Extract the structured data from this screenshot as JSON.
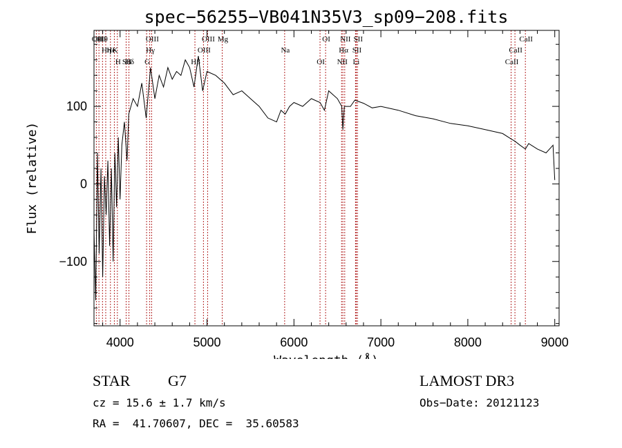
{
  "chart_data": {
    "type": "line",
    "title": "spec−56255−VB041N35V3_sp09−208.fits",
    "xlabel": "Wavelength (Å)",
    "ylabel": "Flux (relative)",
    "xlim": [
      3700,
      9050
    ],
    "ylim": [
      -183,
      198
    ],
    "xticks": [
      4000,
      5000,
      6000,
      7000,
      8000,
      9000
    ],
    "xtick_labels": [
      "4000",
      "5000",
      "6000",
      "7000",
      "8000",
      "9000"
    ],
    "yticks": [
      -100,
      0,
      100
    ],
    "ytick_labels": [
      "−100",
      "0",
      "100"
    ],
    "grid": false,
    "series": [
      {
        "name": "spectrum",
        "x": [
          3700,
          3720,
          3740,
          3760,
          3780,
          3800,
          3820,
          3840,
          3860,
          3880,
          3900,
          3920,
          3940,
          3960,
          3980,
          4000,
          4020,
          4050,
          4080,
          4100,
          4150,
          4200,
          4250,
          4300,
          4350,
          4400,
          4450,
          4500,
          4550,
          4600,
          4650,
          4700,
          4750,
          4800,
          4850,
          4900,
          4950,
          5000,
          5100,
          5200,
          5300,
          5400,
          5500,
          5600,
          5700,
          5800,
          5850,
          5900,
          5950,
          6000,
          6100,
          6200,
          6300,
          6350,
          6400,
          6500,
          6550,
          6563,
          6580,
          6650,
          6700,
          6800,
          6900,
          7000,
          7200,
          7400,
          7600,
          7800,
          8000,
          8200,
          8400,
          8498,
          8542,
          8600,
          8662,
          8700,
          8800,
          8900,
          8980,
          9000
        ],
        "y": [
          -60,
          -150,
          40,
          -90,
          20,
          -120,
          10,
          -40,
          30,
          -80,
          20,
          -100,
          40,
          -30,
          60,
          -20,
          50,
          80,
          30,
          90,
          110,
          100,
          130,
          85,
          150,
          110,
          140,
          125,
          150,
          135,
          145,
          140,
          160,
          150,
          125,
          165,
          120,
          145,
          140,
          130,
          115,
          120,
          110,
          100,
          85,
          80,
          95,
          90,
          100,
          105,
          100,
          110,
          105,
          95,
          120,
          110,
          100,
          70,
          100,
          100,
          108,
          104,
          98,
          100,
          95,
          88,
          84,
          78,
          75,
          70,
          65,
          58,
          55,
          50,
          45,
          52,
          45,
          40,
          50,
          5
        ]
      }
    ],
    "lines": [
      {
        "name": "Hθ",
        "wl": 3798
      },
      {
        "name": "K",
        "wl": 3934
      },
      {
        "name": "Hδ",
        "wl": 4102
      },
      {
        "name": "OII",
        "wl": 3727
      },
      {
        "name": "He",
        "wl": 3889
      },
      {
        "name": "SII",
        "wl": 4070
      },
      {
        "name": "OIII",
        "wl": 3757
      },
      {
        "name": "Hη",
        "wl": 3835
      },
      {
        "name": "H",
        "wl": 3969
      },
      {
        "name": "OIII",
        "wl": 4363
      },
      {
        "name": "Hγ",
        "wl": 4341
      },
      {
        "name": "G",
        "wl": 4305
      },
      {
        "name": "OIII",
        "wl": 5007
      },
      {
        "name": "OIII",
        "wl": 4959
      },
      {
        "name": "Hβ",
        "wl": 4861
      },
      {
        "name": "Mg",
        "wl": 5175
      },
      {
        "name": "Na",
        "wl": 5893
      },
      {
        "name": "OI",
        "wl": 6300
      },
      {
        "name": "OI",
        "wl": 6364
      },
      {
        "name": "Hα",
        "wl": 6563
      },
      {
        "name": "NII",
        "wl": 6548
      },
      {
        "name": "NII",
        "wl": 6584
      },
      {
        "name": "SII",
        "wl": 6717
      },
      {
        "name": "Li",
        "wl": 6708
      },
      {
        "name": "SII",
        "wl": 6731
      },
      {
        "name": "CaII",
        "wl": 8542
      },
      {
        "name": "CaII",
        "wl": 8498
      },
      {
        "name": "CaII",
        "wl": 8662
      }
    ]
  },
  "info": {
    "object_type": "STAR",
    "subclass": "G7",
    "survey": "LAMOST DR3",
    "redshift": "cz = 15.6 ± 1.7 km/s",
    "obs_date": "Obs−Date: 20121123",
    "coords": "RA =  41.70607, DEC =  35.60583"
  }
}
